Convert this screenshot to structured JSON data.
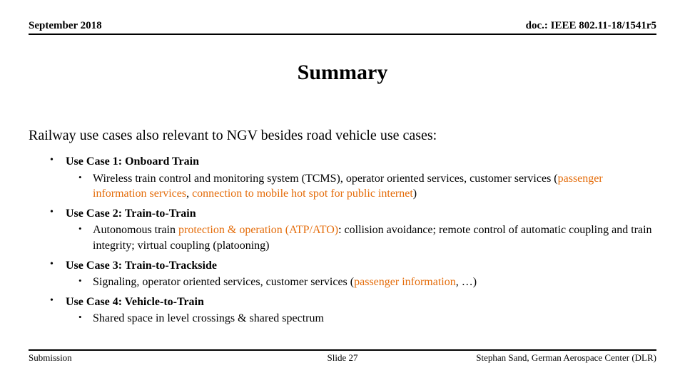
{
  "header": {
    "date": "September 2018",
    "docref": "doc.: IEEE 802.11-18/1541r5"
  },
  "title": "Summary",
  "intro": "Railway use cases also relevant to NGV besides road vehicle use cases:",
  "cases": [
    {
      "label": "Use Case 1: Onboard Train",
      "detail_pre": "Wireless train control and monitoring system (TCMS), operator oriented services, customer services (",
      "detail_orange1": "passenger information services",
      "detail_mid": ", ",
      "detail_orange2": "connection to mobile hot spot for public internet",
      "detail_post": ")"
    },
    {
      "label": "Use Case 2: Train-to-Train",
      "detail_pre": "Autonomous train ",
      "detail_orange1": "protection & operation (ATP/ATO)",
      "detail_mid": ": collision avoidance; remote control of automatic coupling and train integrity; virtual coupling (platooning)",
      "detail_orange2": "",
      "detail_post": ""
    },
    {
      "label": "Use Case 3: Train-to-Trackside",
      "detail_pre": "Signaling, operator oriented services, customer services (",
      "detail_orange1": "passenger information",
      "detail_mid": ", …)",
      "detail_orange2": "",
      "detail_post": ""
    },
    {
      "label": "Use Case 4: Vehicle-to-Train",
      "detail_pre": "Shared space in level crossings & shared spectrum",
      "detail_orange1": "",
      "detail_mid": "",
      "detail_orange2": "",
      "detail_post": ""
    }
  ],
  "footer": {
    "left": "Submission",
    "center": "Slide 27",
    "right": "Stephan Sand, German Aerospace Center (DLR)"
  },
  "colors": {
    "text": "#000000",
    "highlight": "#e46c0a",
    "background": "#ffffff",
    "rule": "#000000"
  }
}
